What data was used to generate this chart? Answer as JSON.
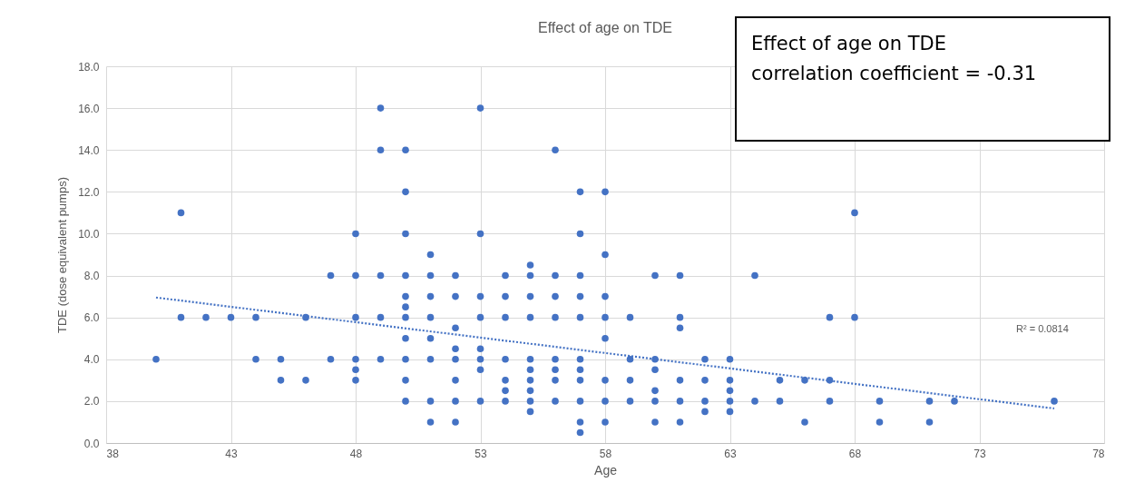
{
  "chart_data": {
    "type": "scatter",
    "title": "Effect of age on TDE",
    "xlabel": "Age",
    "ylabel": "TDE (dose equivalent pumps)",
    "annotations": [
      "Effect of age on TDE\ncorrelation coefficient = -0.31",
      "R² = 0.0814"
    ],
    "xlim": [
      38,
      78
    ],
    "xticks": [
      38,
      43,
      48,
      53,
      58,
      63,
      68,
      73,
      78
    ],
    "ylim": [
      0,
      18
    ],
    "yticks": [
      {
        "value": 0,
        "label": "0.0"
      },
      {
        "value": 2,
        "label": "2.0"
      },
      {
        "value": 4,
        "label": "4.0"
      },
      {
        "value": 6,
        "label": "6.0"
      },
      {
        "value": 8,
        "label": "8.0"
      },
      {
        "value": 10,
        "label": "10.0"
      },
      {
        "value": 12,
        "label": "12.0"
      },
      {
        "value": 14,
        "label": "14.0"
      },
      {
        "value": 16,
        "label": "16.0"
      },
      {
        "value": 18,
        "label": "18.0"
      }
    ],
    "grid": true,
    "series": [
      {
        "color": "#4472c4",
        "marker": "circle",
        "x": [
          40,
          41,
          41,
          42,
          43,
          44,
          44,
          45,
          45,
          46,
          46,
          47,
          47,
          48,
          48,
          48,
          48,
          48,
          48,
          49,
          49,
          49,
          49,
          49,
          50,
          50,
          50,
          50,
          50,
          50,
          50,
          50,
          50,
          50,
          50,
          51,
          51,
          51,
          51,
          51,
          51,
          51,
          51,
          52,
          52,
          52,
          52,
          52,
          52,
          52,
          52,
          53,
          53,
          53,
          53,
          53,
          53,
          53,
          53,
          54,
          54,
          54,
          54,
          54,
          54,
          54,
          55,
          55,
          55,
          55,
          55,
          55,
          55,
          55,
          55,
          55,
          56,
          56,
          56,
          56,
          56,
          56,
          56,
          56,
          57,
          57,
          57,
          57,
          57,
          57,
          57,
          57,
          57,
          57,
          57,
          58,
          58,
          58,
          58,
          58,
          58,
          58,
          58,
          59,
          59,
          59,
          59,
          60,
          60,
          60,
          60,
          60,
          60,
          61,
          61,
          61,
          61,
          61,
          61,
          62,
          62,
          62,
          62,
          63,
          63,
          63,
          63,
          63,
          64,
          64,
          65,
          65,
          66,
          66,
          67,
          67,
          67,
          68,
          68,
          69,
          69,
          71,
          71,
          72,
          76
        ],
        "values": [
          4,
          11,
          6,
          6,
          6,
          6,
          4,
          4,
          3,
          6,
          3,
          8,
          4,
          10,
          8,
          6,
          4,
          3.5,
          3,
          16,
          14,
          8,
          6,
          4,
          14,
          12,
          10,
          8,
          7,
          6.5,
          6,
          5,
          4,
          3,
          2,
          9,
          8,
          7,
          6,
          5,
          4,
          2,
          1,
          8,
          7,
          5.5,
          4.5,
          4,
          3,
          2,
          1,
          16,
          10,
          7,
          6,
          4.5,
          4,
          3.5,
          2,
          8,
          7,
          6,
          4,
          3,
          2.5,
          2,
          8.5,
          8,
          7,
          6,
          4,
          3.5,
          3,
          2.5,
          2,
          1.5,
          14,
          8,
          7,
          6,
          4,
          3.5,
          3,
          2,
          12,
          10,
          8,
          7,
          6,
          4,
          3.5,
          3,
          2,
          1,
          0.5,
          12,
          9,
          7,
          6,
          5,
          3,
          2,
          1,
          6,
          4,
          3,
          2,
          8,
          4,
          3.5,
          2.5,
          2,
          1,
          8,
          6,
          5.5,
          3,
          2,
          1,
          4,
          3,
          2,
          1.5,
          4,
          3,
          2.5,
          2,
          1.5,
          8,
          2,
          3,
          2,
          3,
          1,
          6,
          3,
          2,
          11,
          6,
          2,
          1,
          2,
          1,
          2,
          2
        ]
      },
      {
        "type": "line",
        "color": "#4472c4",
        "marker": "none",
        "line_style": "dotted",
        "x": [
          40,
          76
        ],
        "values": [
          6.95,
          1.65
        ]
      }
    ]
  }
}
